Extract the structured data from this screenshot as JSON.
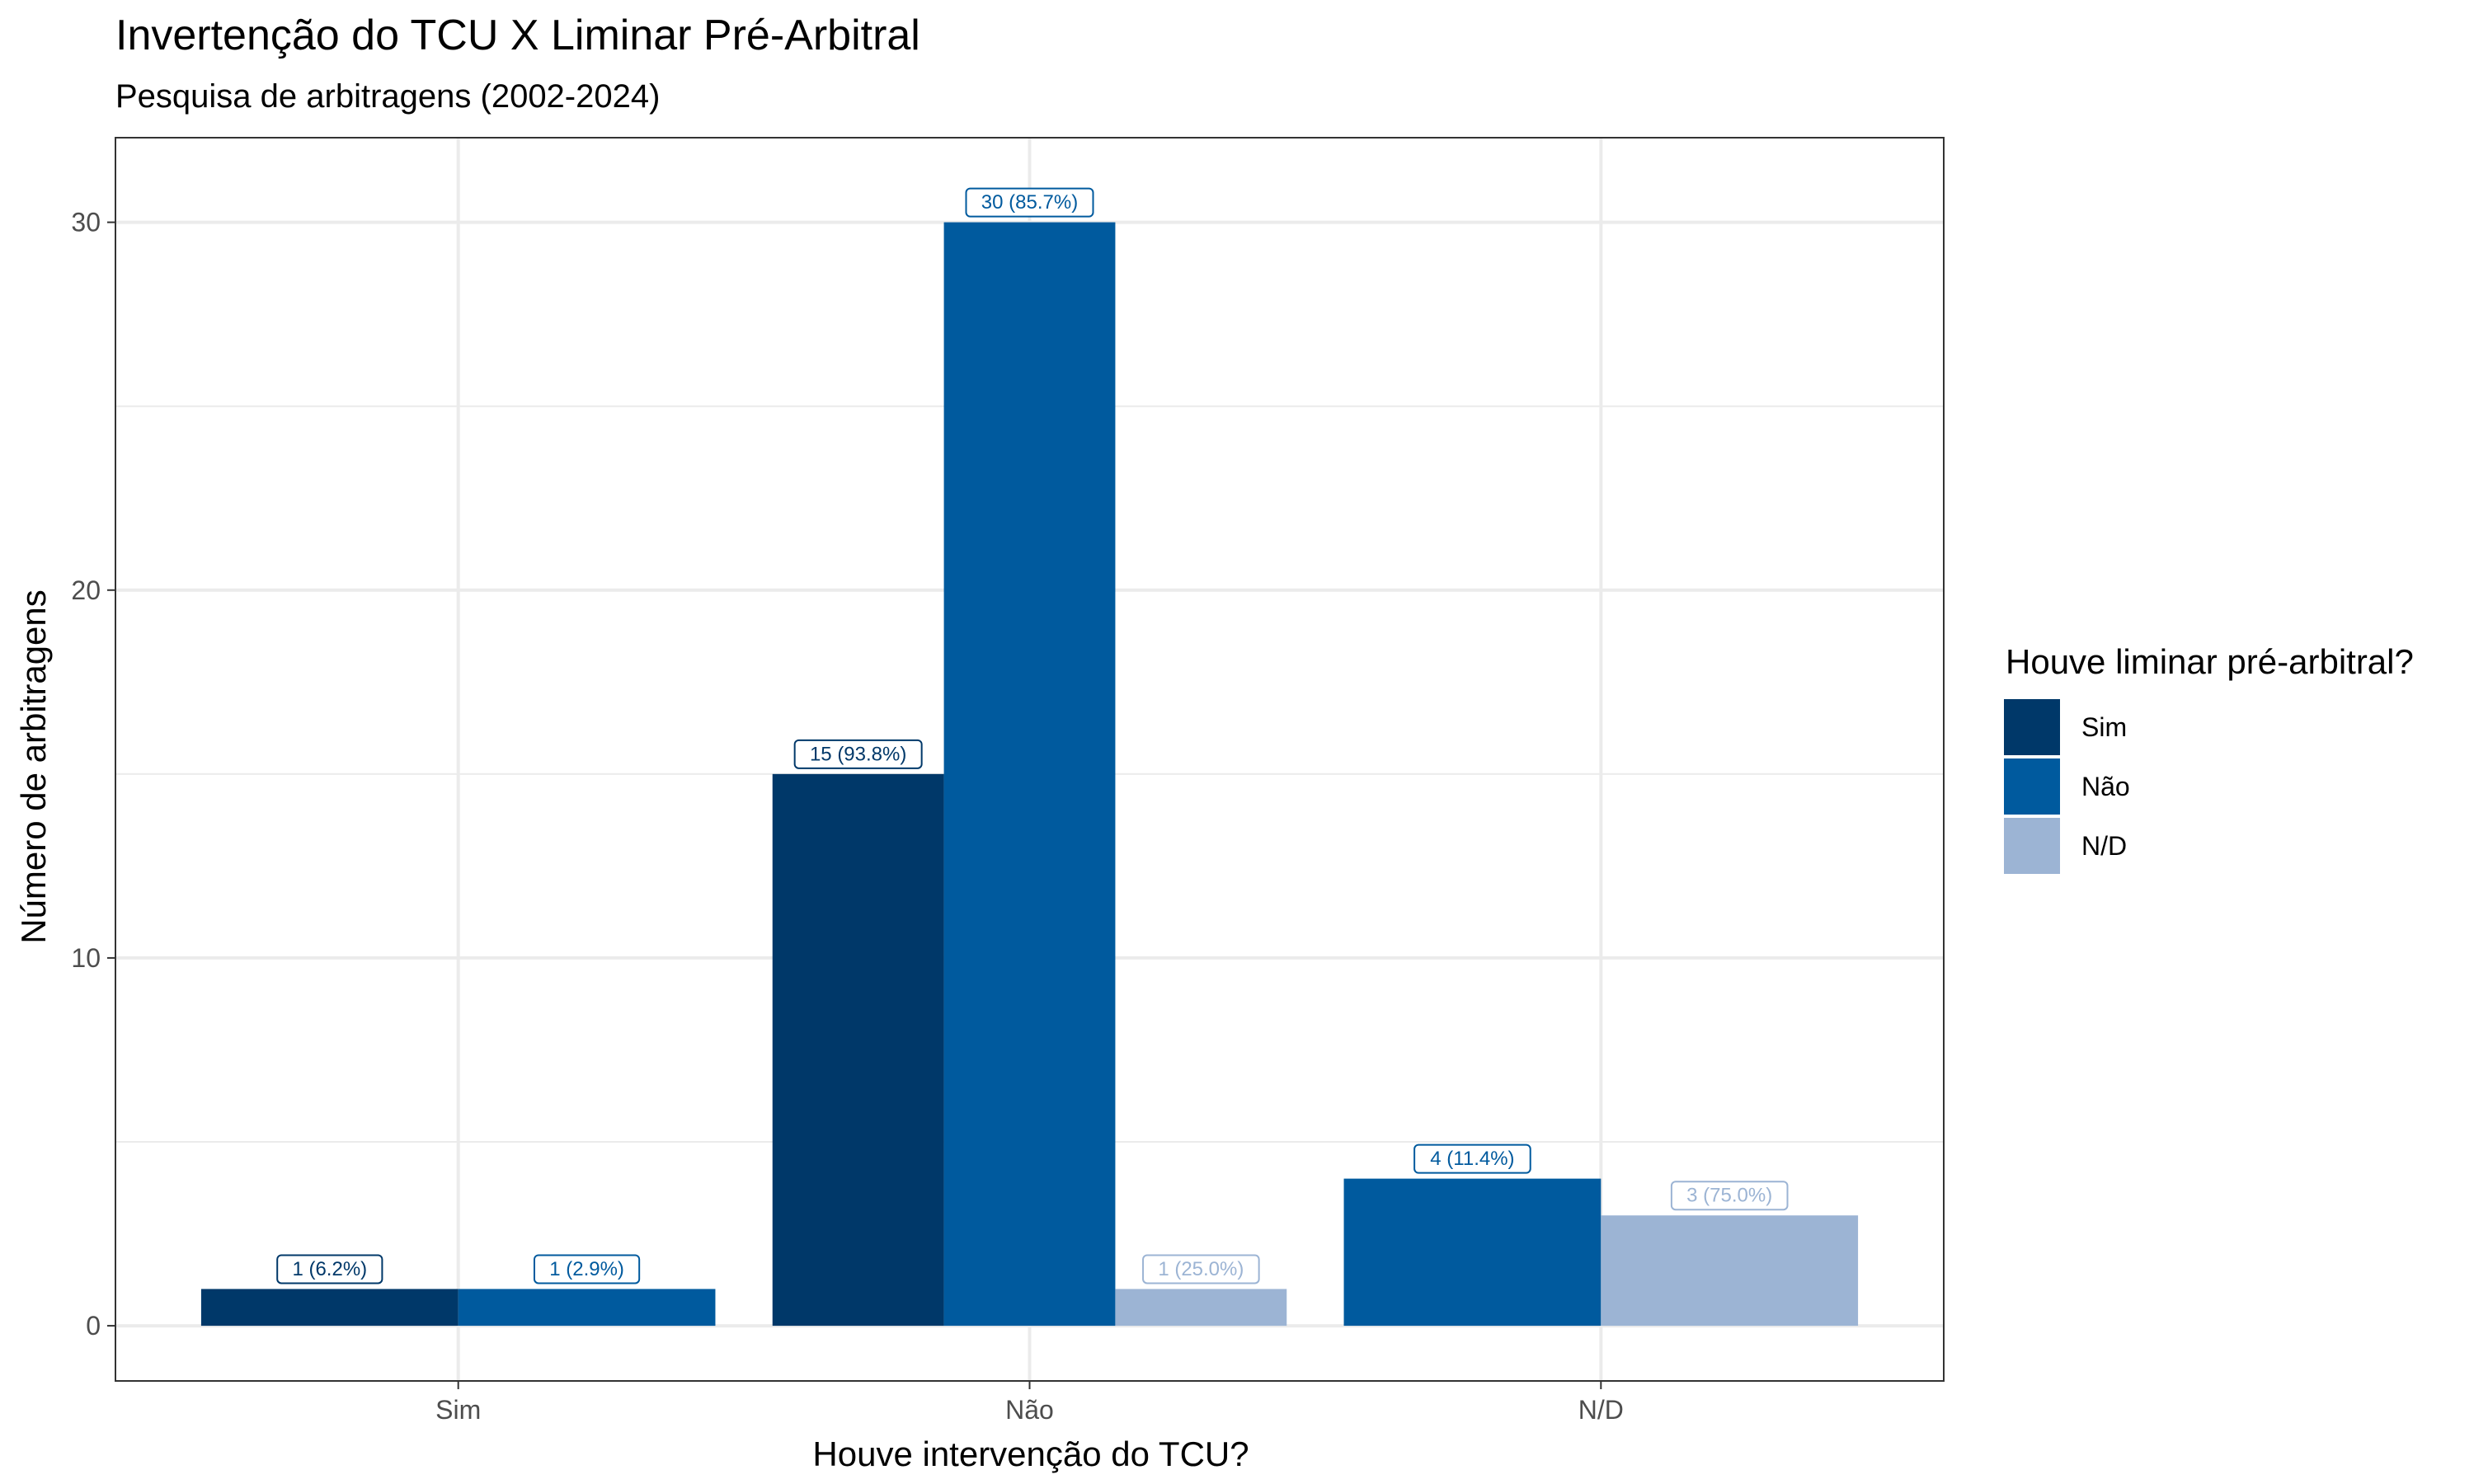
{
  "chart_data": {
    "type": "bar",
    "title": "Invertenção do TCU X Liminar Pré-Arbitral",
    "subtitle": "Pesquisa de arbitragens (2002-2024)",
    "xlabel": "Houve intervenção do TCU?",
    "ylabel": "Número de arbitragens",
    "categories": [
      "Sim",
      "Não",
      "N/D"
    ],
    "ylim": [
      -1.5,
      32.3
    ],
    "yticks": [
      0,
      10,
      20,
      30
    ],
    "ytick_labels": [
      "0",
      "10",
      "20",
      "30"
    ],
    "grid": true,
    "legend": {
      "title": "Houve liminar pré-arbitral?",
      "position": "right",
      "entries": [
        "Sim",
        "Não",
        "N/D"
      ]
    },
    "colors": {
      "Sim": "#003869",
      "Não": "#005a9e",
      "N/D": "#9cb4d4"
    },
    "bars": [
      {
        "category": "Sim",
        "series": "Sim",
        "value": 1,
        "label": "1 (6.2%)"
      },
      {
        "category": "Sim",
        "series": "Não",
        "value": 1,
        "label": "1 (2.9%)"
      },
      {
        "category": "Não",
        "series": "Sim",
        "value": 15,
        "label": "15 (93.8%)"
      },
      {
        "category": "Não",
        "series": "Não",
        "value": 30,
        "label": "30 (85.7%)"
      },
      {
        "category": "Não",
        "series": "N/D",
        "value": 1,
        "label": "1 (25.0%)"
      },
      {
        "category": "N/D",
        "series": "Não",
        "value": 4,
        "label": "4 (11.4%)"
      },
      {
        "category": "N/D",
        "series": "N/D",
        "value": 3,
        "label": "3 (75.0%)"
      }
    ]
  }
}
